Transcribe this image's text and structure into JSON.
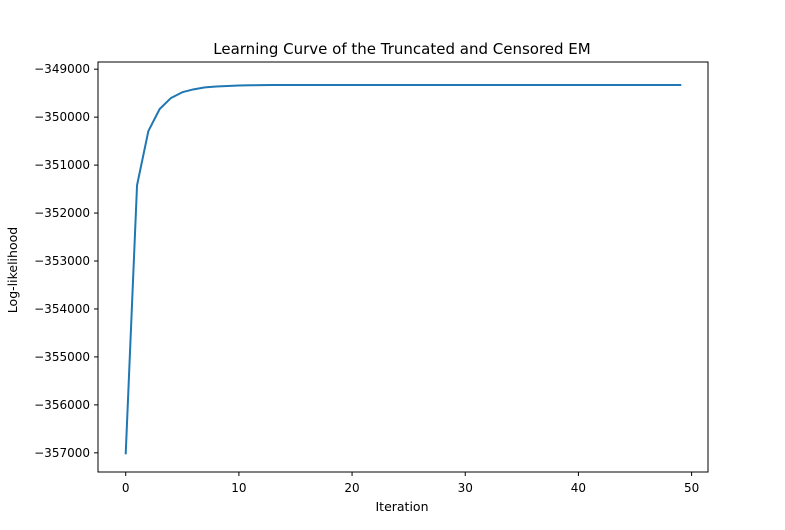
{
  "chart_data": {
    "type": "line",
    "title": "Learning Curve of the Truncated and Censored EM",
    "xlabel": "Iteration",
    "ylabel": "Log-likelihood",
    "xlim": [
      -2.45,
      51.45
    ],
    "ylim": [
      -357400,
      -348850
    ],
    "xticks": [
      0,
      10,
      20,
      30,
      40,
      50
    ],
    "yticks": [
      -349000,
      -350000,
      -351000,
      -352000,
      -353000,
      -354000,
      -355000,
      -356000,
      -357000
    ],
    "xtick_labels": [
      "0",
      "10",
      "20",
      "30",
      "40",
      "50"
    ],
    "ytick_labels": [
      "−349000",
      "−350000",
      "−351000",
      "−352000",
      "−353000",
      "−354000",
      "−355000",
      "−356000",
      "−357000"
    ],
    "grid": false,
    "series": [
      {
        "color": "#1f77b4",
        "x": [
          0,
          1,
          2,
          3,
          4,
          5,
          6,
          7,
          8,
          9,
          10,
          11,
          12,
          13,
          14,
          15,
          16,
          17,
          18,
          19,
          20,
          21,
          22,
          23,
          24,
          25,
          26,
          27,
          28,
          29,
          30,
          31,
          32,
          33,
          34,
          35,
          36,
          37,
          38,
          39,
          40,
          41,
          42,
          43,
          44,
          45,
          46,
          47,
          48,
          49
        ],
        "y": [
          -357010,
          -351420,
          -350290,
          -349830,
          -349600,
          -349480,
          -349420,
          -349380,
          -349360,
          -349350,
          -349340,
          -349335,
          -349332,
          -349330,
          -349330,
          -349330,
          -349330,
          -349330,
          -349330,
          -349330,
          -349330,
          -349330,
          -349330,
          -349330,
          -349330,
          -349330,
          -349330,
          -349330,
          -349330,
          -349330,
          -349330,
          -349330,
          -349330,
          -349330,
          -349330,
          -349330,
          -349330,
          -349330,
          -349330,
          -349330,
          -349330,
          -349330,
          -349330,
          -349330,
          -349330,
          -349330,
          -349330,
          -349330,
          -349330,
          -349330
        ]
      }
    ]
  }
}
